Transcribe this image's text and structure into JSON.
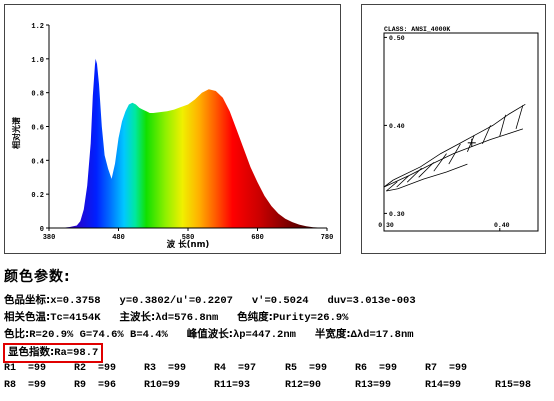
{
  "chart_data": [
    {
      "type": "area",
      "xlabel": "波 长(nm)",
      "ylabel": "相对光谱",
      "xlim": [
        380,
        780
      ],
      "ylim": [
        0,
        1.2
      ],
      "x_ticks": [
        "380",
        "480",
        "580",
        "680",
        "780"
      ],
      "y_ticks": [
        "0",
        "0.2",
        "0.4",
        "0.6",
        "0.8",
        "1.0",
        "1.2"
      ],
      "x": [
        380,
        400,
        410,
        420,
        425,
        430,
        435,
        440,
        443,
        446,
        447,
        449,
        452,
        456,
        460,
        465,
        470,
        475,
        480,
        485,
        490,
        495,
        500,
        505,
        510,
        515,
        520,
        525,
        530,
        540,
        550,
        560,
        570,
        580,
        590,
        600,
        610,
        620,
        630,
        640,
        650,
        660,
        670,
        680,
        690,
        700,
        710,
        720,
        730,
        740,
        750,
        760,
        780
      ],
      "values": [
        0,
        0.002,
        0.006,
        0.015,
        0.04,
        0.11,
        0.25,
        0.5,
        0.78,
        0.96,
        1.0,
        0.97,
        0.85,
        0.6,
        0.43,
        0.35,
        0.29,
        0.38,
        0.53,
        0.63,
        0.69,
        0.73,
        0.74,
        0.73,
        0.71,
        0.7,
        0.69,
        0.68,
        0.68,
        0.685,
        0.69,
        0.7,
        0.715,
        0.73,
        0.76,
        0.8,
        0.82,
        0.81,
        0.77,
        0.69,
        0.58,
        0.47,
        0.36,
        0.27,
        0.19,
        0.13,
        0.085,
        0.055,
        0.035,
        0.02,
        0.01,
        0.004,
        0.0
      ]
    },
    {
      "type": "scatter",
      "title": "CLASS: ANSI_4000K",
      "xlim": [
        0.3,
        0.433
      ],
      "ylim": [
        0.28,
        0.505
      ],
      "x_ticks": [
        0.3,
        0.4
      ],
      "y_ticks": [
        0.3,
        0.4,
        0.5
      ],
      "x_tick_labels": [
        "0.30",
        "0.40"
      ],
      "y_tick_labels": [
        "0.30",
        "0.40",
        "0.50"
      ],
      "bin_lines": [
        [
          [
            0.3,
            0.33
          ],
          [
            0.308,
            0.338
          ]
        ],
        [
          [
            0.302,
            0.3255
          ],
          [
            0.3115,
            0.336
          ]
        ],
        [
          [
            0.311,
            0.33
          ],
          [
            0.3215,
            0.343
          ]
        ],
        [
          [
            0.32,
            0.3355
          ],
          [
            0.3325,
            0.3515
          ]
        ],
        [
          [
            0.33,
            0.341
          ],
          [
            0.343,
            0.358
          ]
        ],
        [
          [
            0.343,
            0.348
          ],
          [
            0.354,
            0.368
          ]
        ],
        [
          [
            0.356,
            0.356
          ],
          [
            0.366,
            0.379
          ]
        ],
        [
          [
            0.372,
            0.37
          ],
          [
            0.378,
            0.389
          ]
        ],
        [
          [
            0.385,
            0.379
          ],
          [
            0.392,
            0.4
          ]
        ],
        [
          [
            0.4,
            0.388
          ],
          [
            0.405,
            0.412
          ]
        ],
        [
          [
            0.414,
            0.396
          ],
          [
            0.42,
            0.423
          ]
        ],
        [
          [
            0.308,
            0.338
          ],
          [
            0.3315,
            0.353
          ],
          [
            0.349,
            0.368
          ],
          [
            0.366,
            0.38
          ],
          [
            0.38,
            0.39
          ],
          [
            0.394,
            0.4
          ],
          [
            0.408,
            0.413
          ],
          [
            0.422,
            0.424
          ]
        ],
        [
          [
            0.3,
            0.33
          ],
          [
            0.3215,
            0.343
          ],
          [
            0.341,
            0.356
          ],
          [
            0.36,
            0.368
          ],
          [
            0.376,
            0.376
          ],
          [
            0.392,
            0.384
          ],
          [
            0.406,
            0.39
          ],
          [
            0.42,
            0.396
          ]
        ],
        [
          [
            0.302,
            0.3255
          ],
          [
            0.312,
            0.328
          ],
          [
            0.334,
            0.339
          ],
          [
            0.354,
            0.347
          ],
          [
            0.372,
            0.356
          ]
        ]
      ],
      "measured_point": {
        "x": 0.3758,
        "y": 0.3802
      }
    }
  ],
  "params": {
    "title": "颜色参数:",
    "coords_label": "色品坐标:",
    "coords_value": "x=0.3758   y=0.3802/u'=0.2207   v'=0.5024   duv=3.013e-003",
    "cct_label": "相关色温:",
    "cct_value": "Tc=4154K",
    "dominant_label": "主波长:",
    "dominant_value": "λd=576.8nm",
    "purity_label": "色纯度:",
    "purity_value": "Purity=26.9%",
    "ratio_label": "色比:",
    "ratio_value": "R=20.9% G=74.6% B=4.4%",
    "peak_label": "峰值波长:",
    "peak_value": "λp=447.2nm",
    "fwhm_label": "半宽度:",
    "fwhm_value": "Δλd=17.8nm",
    "ra_label": "显色指数:",
    "ra_value": "Ra=98.7",
    "r_row1": [
      "R1  =99",
      "R2  =99",
      "R3  =99",
      "R4  =97",
      "R5  =99",
      "R6  =99",
      "R7  =99"
    ],
    "r_row2": [
      "R8  =99",
      "R9  =96",
      "R10=99",
      "R11=93",
      "R12=90",
      "R13=99",
      "R14=99",
      "R15=98"
    ]
  }
}
